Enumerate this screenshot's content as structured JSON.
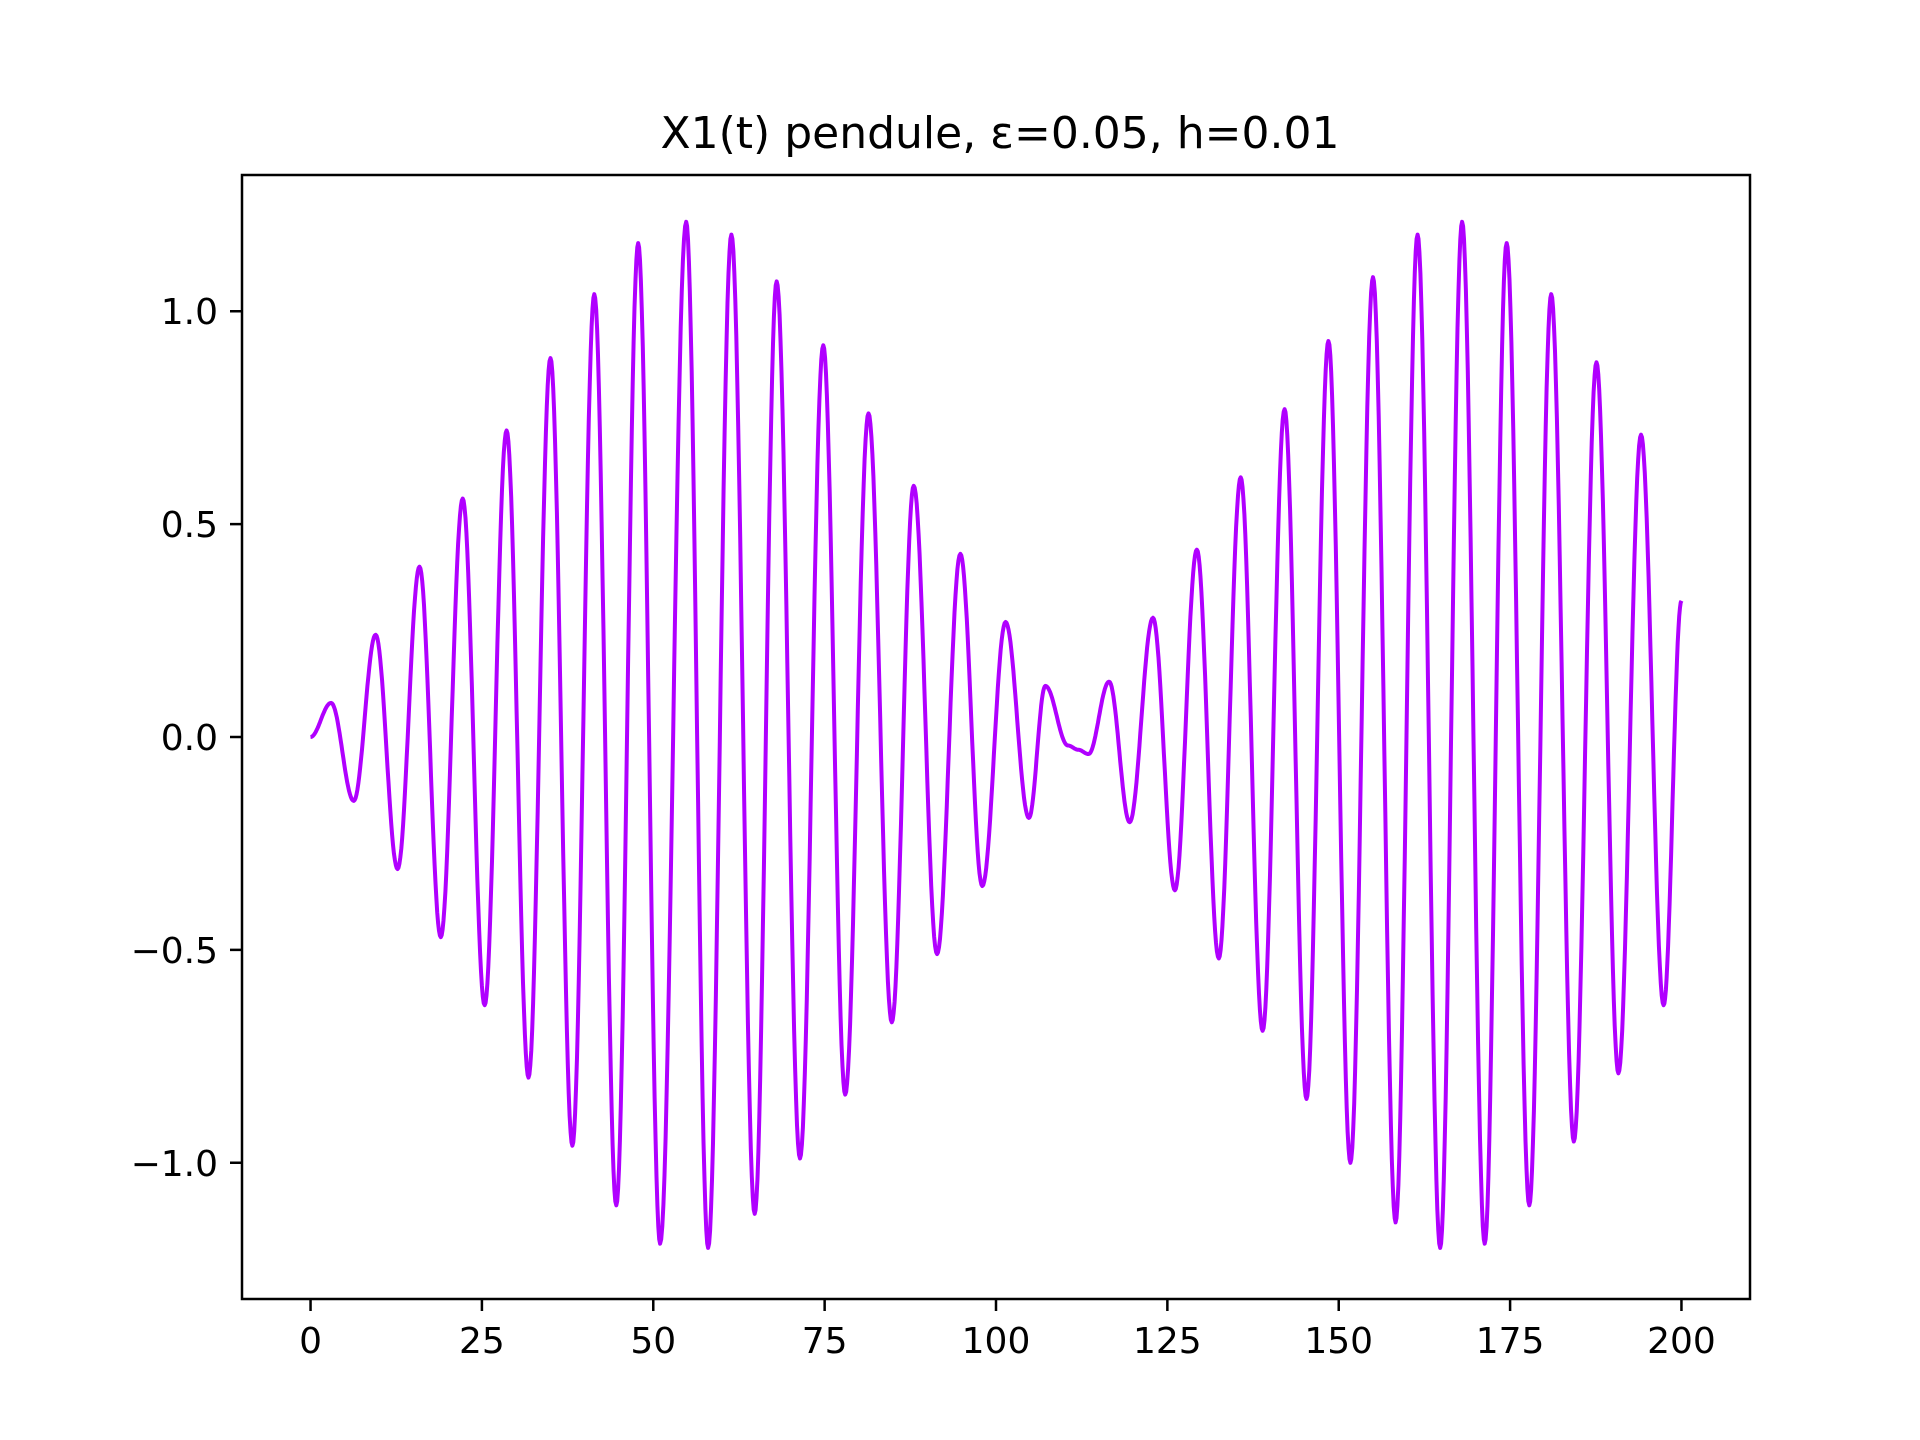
{
  "chart_data": {
    "type": "line",
    "title": "X1(t) pendule, ε=0.05, h=0.01",
    "xlabel": "",
    "ylabel": "",
    "xlim": [
      -10,
      210
    ],
    "ylim": [
      -1.32,
      1.32
    ],
    "grid": false,
    "legend": "none",
    "x_ticks": [
      0,
      25,
      50,
      75,
      100,
      125,
      150,
      175,
      200
    ],
    "x_tick_labels": [
      "0",
      "25",
      "50",
      "75",
      "100",
      "125",
      "150",
      "175",
      "200"
    ],
    "y_ticks": [
      -1.0,
      -0.5,
      0.0,
      0.5,
      1.0
    ],
    "y_tick_labels": [
      "−1.0",
      "−0.5",
      "0.0",
      "0.5",
      "1.0"
    ],
    "series": [
      {
        "color": "#b000ff",
        "x_range": [
          0,
          200
        ],
        "peaks": [
          [
            0,
            0.0
          ],
          [
            3.0,
            0.08
          ],
          [
            6.3,
            -0.15
          ],
          [
            9.5,
            0.24
          ],
          [
            12.7,
            -0.31
          ],
          [
            15.9,
            0.4
          ],
          [
            19.0,
            -0.47
          ],
          [
            22.2,
            0.56
          ],
          [
            25.4,
            -0.63
          ],
          [
            28.6,
            0.72
          ],
          [
            31.8,
            -0.8
          ],
          [
            35.0,
            0.89
          ],
          [
            38.2,
            -0.96
          ],
          [
            41.4,
            1.04
          ],
          [
            44.6,
            -1.1
          ],
          [
            47.8,
            1.16
          ],
          [
            51.0,
            -1.19
          ],
          [
            54.8,
            1.21
          ],
          [
            58.0,
            -1.2
          ],
          [
            61.4,
            1.18
          ],
          [
            64.8,
            -1.12
          ],
          [
            68.0,
            1.07
          ],
          [
            71.4,
            -0.99
          ],
          [
            74.8,
            0.92
          ],
          [
            78.0,
            -0.84
          ],
          [
            81.4,
            0.76
          ],
          [
            84.8,
            -0.67
          ],
          [
            88.0,
            0.59
          ],
          [
            91.4,
            -0.51
          ],
          [
            94.8,
            0.43
          ],
          [
            98.0,
            -0.35
          ],
          [
            101.4,
            0.27
          ],
          [
            104.8,
            -0.19
          ],
          [
            107.2,
            0.12
          ],
          [
            110.5,
            -0.02
          ],
          [
            112.0,
            -0.03
          ],
          [
            113.5,
            -0.04
          ],
          [
            116.5,
            0.13
          ],
          [
            119.5,
            -0.2
          ],
          [
            122.9,
            0.28
          ],
          [
            126.1,
            -0.36
          ],
          [
            129.3,
            0.44
          ],
          [
            132.5,
            -0.52
          ],
          [
            135.7,
            0.61
          ],
          [
            138.9,
            -0.69
          ],
          [
            142.1,
            0.77
          ],
          [
            145.3,
            -0.85
          ],
          [
            148.5,
            0.93
          ],
          [
            151.7,
            -1.0
          ],
          [
            155.0,
            1.08
          ],
          [
            158.3,
            -1.14
          ],
          [
            161.5,
            1.18
          ],
          [
            164.8,
            -1.2
          ],
          [
            168.0,
            1.21
          ],
          [
            171.3,
            -1.19
          ],
          [
            174.5,
            1.16
          ],
          [
            177.8,
            -1.1
          ],
          [
            181.0,
            1.04
          ],
          [
            184.3,
            -0.95
          ],
          [
            187.6,
            0.88
          ],
          [
            190.8,
            -0.79
          ],
          [
            194.1,
            0.71
          ],
          [
            197.4,
            -0.63
          ],
          [
            200.0,
            0.32
          ]
        ]
      }
    ]
  }
}
